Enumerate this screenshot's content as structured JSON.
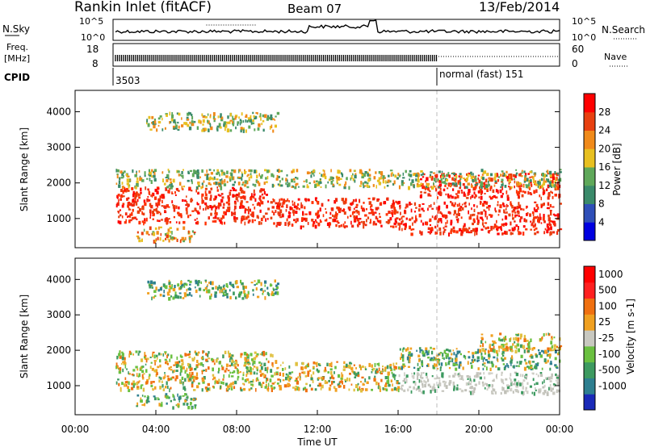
{
  "header": {
    "station": "Rankin Inlet (fitACF)",
    "beam": "Beam 07",
    "date": "13/Feb/2014"
  },
  "nsky_panel": {
    "left_label": "N.Sky",
    "left_ticks": [
      "10^5",
      "10^0"
    ],
    "right_label": "N.Search",
    "right_ticks": [
      "10^5",
      "10^0"
    ]
  },
  "freq_panel": {
    "left_label_1": "Freq.",
    "left_label_2": "[MHz]",
    "left_ticks": [
      "18",
      "8"
    ],
    "right_label": "Nave",
    "right_ticks": [
      "60",
      "0"
    ]
  },
  "cpid": {
    "label": "CPID",
    "segments": [
      {
        "time_h": 2.0,
        "text": "3503"
      },
      {
        "time_h": 18.0,
        "text": "normal (fast) 151"
      }
    ]
  },
  "chart_data": [
    {
      "type": "heatmap",
      "name": "Power",
      "ylabel": "Slant Range [km]",
      "xlabel": "Time UT",
      "xlim_hours": [
        0,
        24
      ],
      "ylim_km": [
        180,
        4600
      ],
      "yticks": [
        1000,
        2000,
        3000,
        4000
      ],
      "colorbar": {
        "label": "Power [dB]",
        "ticks": [
          "4",
          "8",
          "12",
          "16",
          "20",
          "24",
          "28"
        ],
        "colors": [
          "#0000e0",
          "#2f4fb8",
          "#3a8a6a",
          "#5fa85a",
          "#e8c020",
          "#f08a1a",
          "#e84010",
          "#ff0000"
        ]
      },
      "bands": [
        {
          "t0": 2.0,
          "t1": 9.5,
          "r0": 900,
          "r1": 1900,
          "dominant": "red"
        },
        {
          "t0": 9.5,
          "t1": 16.0,
          "r0": 800,
          "r1": 1600,
          "dominant": "red"
        },
        {
          "t0": 16.0,
          "t1": 24.0,
          "r0": 600,
          "r1": 1500,
          "dominant": "red"
        },
        {
          "t0": 17.0,
          "t1": 24.0,
          "r0": 1600,
          "r1": 2300,
          "dominant": "red"
        },
        {
          "t0": 3.5,
          "t1": 10.0,
          "r0": 3500,
          "r1": 4000,
          "dominant": "green"
        },
        {
          "t0": 2.0,
          "t1": 24.0,
          "r0": 1900,
          "r1": 2400,
          "dominant": "green"
        },
        {
          "t0": 3.0,
          "t1": 6.0,
          "r0": 400,
          "r1": 800,
          "dominant": "orange"
        }
      ]
    },
    {
      "type": "heatmap",
      "name": "Velocity",
      "ylabel": "Slant Range [km]",
      "xlabel": "Time UT",
      "xlim_hours": [
        0,
        24
      ],
      "ylim_km": [
        180,
        4600
      ],
      "yticks": [
        1000,
        2000,
        3000,
        4000
      ],
      "colorbar": {
        "label": "Velocity [m s-1]",
        "ticks": [
          "1000",
          "500",
          "100",
          "25",
          "-25",
          "-100",
          "-500",
          "-1000"
        ],
        "colors": [
          "#1a2ab8",
          "#2e7f90",
          "#3d9a60",
          "#6ac040",
          "#c8c8c0",
          "#f0a020",
          "#f07010",
          "#ff2020",
          "#ff0000"
        ]
      },
      "bands": [
        {
          "t0": 2.0,
          "t1": 10.0,
          "r0": 900,
          "r1": 2000,
          "dominant": "orange"
        },
        {
          "t0": 10.0,
          "t1": 16.0,
          "r0": 900,
          "r1": 1700,
          "dominant": "orange"
        },
        {
          "t0": 16.0,
          "t1": 24.0,
          "r0": 800,
          "r1": 1400,
          "dominant": "grey"
        },
        {
          "t0": 16.0,
          "t1": 24.0,
          "r0": 1500,
          "r1": 2100,
          "dominant": "green"
        },
        {
          "t0": 3.5,
          "t1": 10.0,
          "r0": 3500,
          "r1": 4000,
          "dominant": "green"
        },
        {
          "t0": 20.0,
          "t1": 24.0,
          "r0": 2000,
          "r1": 2500,
          "dominant": "orange"
        },
        {
          "t0": 3.0,
          "t1": 6.0,
          "r0": 400,
          "r1": 800,
          "dominant": "green"
        }
      ]
    }
  ],
  "time_axis": {
    "label": "Time UT",
    "ticks": [
      "00:00",
      "04:00",
      "08:00",
      "12:00",
      "16:00",
      "20:00",
      "00:00"
    ]
  }
}
